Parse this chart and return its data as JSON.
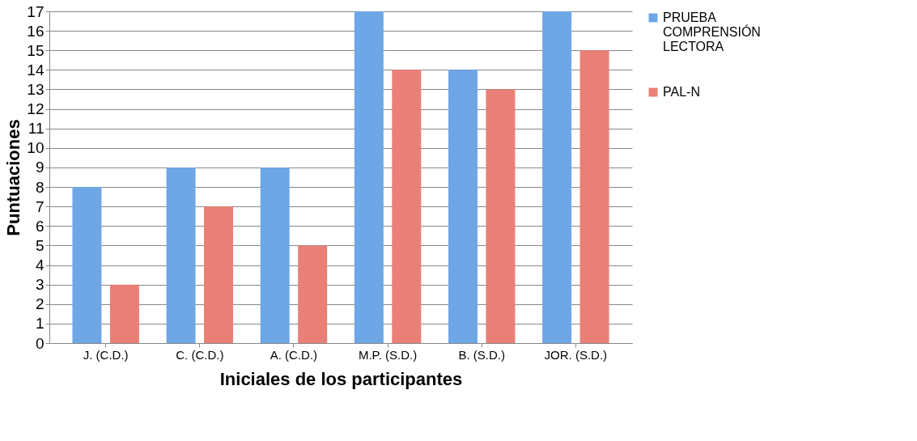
{
  "chart_data": {
    "type": "bar",
    "xlabel": "Iniciales de los participantes",
    "ylabel": "Puntuaciones",
    "categories": [
      "J. (C.D.)",
      "C. (C.D.)",
      "A. (C.D.)",
      "M.P. (S.D.)",
      "B. (S.D.)",
      "JOR. (S.D.)"
    ],
    "series": [
      {
        "name": "PRUEBA COMPRENSIÓN LECTORA",
        "color": "#6fa6e6",
        "values": [
          8,
          9,
          9,
          17,
          14,
          17
        ]
      },
      {
        "name": "PAL-N",
        "color": "#ea7f78",
        "values": [
          3,
          7,
          5,
          14,
          13,
          15
        ]
      }
    ],
    "ylim": [
      0,
      17
    ],
    "yticks": [
      0,
      1,
      2,
      3,
      4,
      5,
      6,
      7,
      8,
      9,
      10,
      11,
      12,
      13,
      14,
      15,
      16,
      17
    ],
    "grid": "y",
    "legend": "right"
  }
}
